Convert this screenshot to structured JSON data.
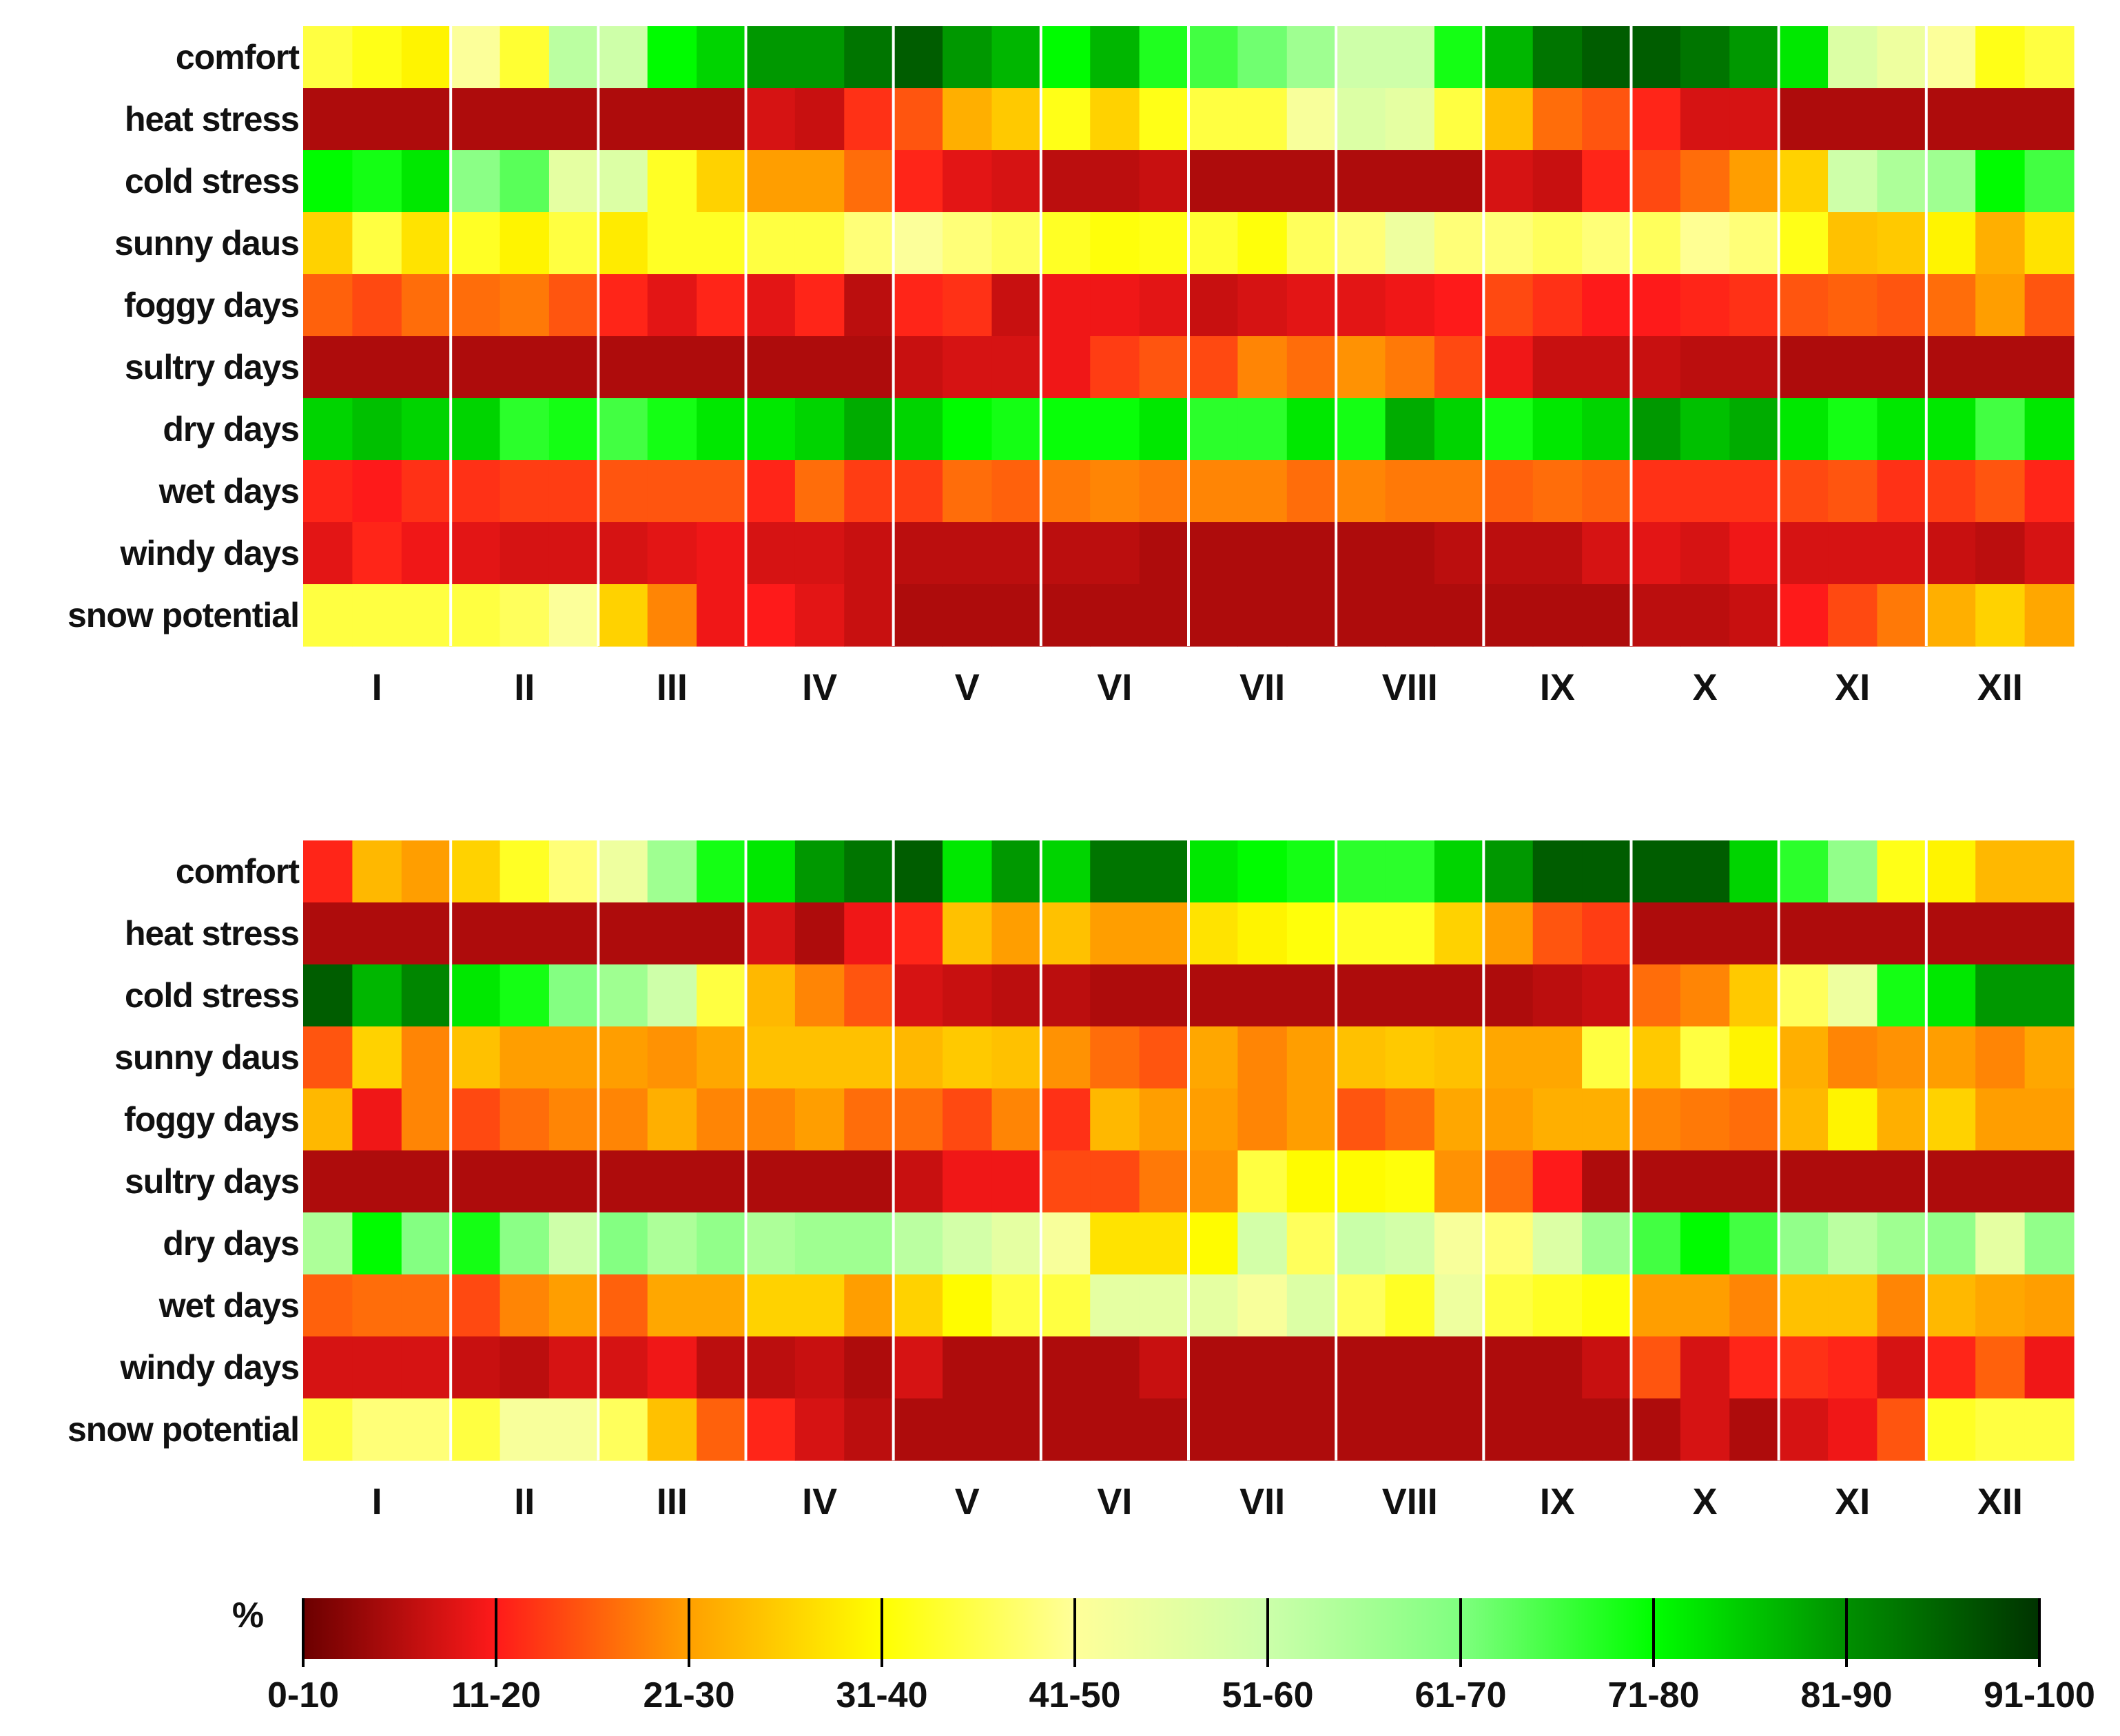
{
  "chart_data": {
    "type": "heatmap",
    "rows": [
      "comfort",
      "heat stress",
      "cold stress",
      "sunny daus",
      "foggy days",
      "sultry days",
      "dry days",
      "wet days",
      "windy days",
      "snow potential"
    ],
    "months": [
      "I",
      "II",
      "III",
      "IV",
      "V",
      "VI",
      "VII",
      "VIII",
      "IX",
      "X",
      "XI",
      "XII"
    ],
    "units_note": "each month split into 3 dekads (36 columns); values in % (class midpoints)",
    "panels": [
      {
        "name": "upper",
        "values": [
          [
            38,
            35,
            32,
            45,
            37,
            58,
            55,
            78,
            82,
            88,
            88,
            92,
            95,
            88,
            85,
            78,
            85,
            75,
            72,
            68,
            62,
            55,
            55,
            76,
            85,
            92,
            95,
            95,
            92,
            88,
            80,
            52,
            48,
            45,
            35,
            38
          ],
          [
            5,
            5,
            5,
            5,
            5,
            5,
            5,
            5,
            5,
            8,
            7,
            13,
            16,
            24,
            27,
            35,
            28,
            35,
            38,
            38,
            46,
            52,
            50,
            38,
            26,
            18,
            16,
            12,
            8,
            8,
            5,
            5,
            5,
            5,
            5,
            5
          ],
          [
            78,
            76,
            80,
            65,
            70,
            50,
            52,
            36,
            28,
            22,
            22,
            18,
            12,
            9,
            8,
            6,
            6,
            7,
            5,
            5,
            5,
            5,
            5,
            5,
            8,
            7,
            12,
            15,
            18,
            22,
            28,
            55,
            60,
            62,
            78,
            72
          ],
          [
            28,
            38,
            30,
            36,
            32,
            38,
            31,
            36,
            36,
            38,
            38,
            42,
            45,
            42,
            40,
            36,
            34,
            35,
            37,
            34,
            40,
            42,
            48,
            42,
            42,
            40,
            42,
            40,
            44,
            42,
            35,
            26,
            27,
            32,
            24,
            30
          ],
          [
            17,
            15,
            18,
            18,
            19,
            16,
            12,
            9,
            12,
            9,
            12,
            6,
            12,
            13,
            7,
            10,
            10,
            9,
            7,
            8,
            9,
            9,
            10,
            11,
            15,
            13,
            11,
            11,
            12,
            13,
            16,
            17,
            16,
            18,
            22,
            16
          ],
          [
            5,
            5,
            5,
            5,
            5,
            5,
            5,
            5,
            5,
            5,
            5,
            5,
            7,
            8,
            8,
            10,
            14,
            16,
            15,
            20,
            18,
            21,
            19,
            15,
            10,
            7,
            7,
            7,
            6,
            6,
            5,
            5,
            5,
            5,
            5,
            5
          ],
          [
            82,
            84,
            82,
            82,
            74,
            76,
            72,
            76,
            80,
            80,
            82,
            86,
            82,
            78,
            76,
            77,
            77,
            80,
            74,
            74,
            80,
            76,
            86,
            82,
            76,
            80,
            82,
            88,
            84,
            86,
            80,
            76,
            80,
            80,
            72,
            80
          ],
          [
            12,
            11,
            13,
            13,
            14,
            14,
            16,
            16,
            16,
            12,
            18,
            14,
            14,
            18,
            17,
            19,
            20,
            19,
            20,
            20,
            18,
            20,
            19,
            19,
            17,
            18,
            17,
            13,
            13,
            13,
            15,
            16,
            13,
            14,
            16,
            12
          ],
          [
            9,
            12,
            10,
            9,
            8,
            8,
            8,
            9,
            10,
            8,
            8,
            7,
            6,
            6,
            6,
            6,
            6,
            5,
            5,
            5,
            5,
            5,
            5,
            6,
            6,
            6,
            8,
            9,
            8,
            10,
            8,
            8,
            8,
            7,
            6,
            8
          ],
          [
            38,
            38,
            38,
            38,
            40,
            45,
            28,
            20,
            10,
            11,
            9,
            7,
            5,
            5,
            5,
            5,
            5,
            5,
            5,
            5,
            5,
            5,
            5,
            5,
            5,
            5,
            5,
            6,
            6,
            7,
            11,
            15,
            19,
            24,
            28,
            23
          ]
        ]
      },
      {
        "name": "lower",
        "values": [
          [
            12,
            25,
            22,
            28,
            36,
            42,
            48,
            62,
            76,
            80,
            88,
            92,
            95,
            80,
            88,
            82,
            92,
            92,
            80,
            78,
            76,
            74,
            74,
            82,
            88,
            95,
            95,
            95,
            95,
            82,
            74,
            64,
            35,
            32,
            25,
            25
          ],
          [
            5,
            5,
            5,
            5,
            5,
            5,
            5,
            5,
            5,
            8,
            5,
            10,
            12,
            26,
            22,
            26,
            22,
            22,
            30,
            32,
            34,
            36,
            36,
            28,
            22,
            16,
            14,
            5,
            5,
            5,
            5,
            5,
            5,
            5,
            5,
            5
          ],
          [
            95,
            85,
            90,
            80,
            76,
            66,
            62,
            55,
            38,
            25,
            20,
            16,
            8,
            7,
            6,
            6,
            5,
            5,
            5,
            5,
            5,
            5,
            5,
            5,
            5,
            6,
            7,
            18,
            20,
            27,
            40,
            48,
            76,
            80,
            88,
            88
          ],
          [
            16,
            28,
            20,
            26,
            22,
            22,
            22,
            21,
            23,
            26,
            26,
            26,
            25,
            27,
            26,
            21,
            18,
            16,
            23,
            20,
            22,
            26,
            27,
            26,
            23,
            23,
            38,
            27,
            38,
            32,
            24,
            20,
            21,
            22,
            20,
            23
          ],
          [
            25,
            10,
            20,
            15,
            18,
            20,
            20,
            24,
            20,
            20,
            22,
            18,
            18,
            15,
            20,
            13,
            25,
            22,
            22,
            20,
            22,
            16,
            18,
            23,
            22,
            24,
            24,
            20,
            19,
            18,
            25,
            32,
            24,
            28,
            22,
            22
          ],
          [
            5,
            5,
            5,
            5,
            5,
            5,
            5,
            5,
            5,
            5,
            5,
            5,
            7,
            10,
            10,
            15,
            15,
            19,
            21,
            38,
            33,
            33,
            34,
            21,
            18,
            11,
            5,
            5,
            5,
            5,
            5,
            5,
            5,
            5,
            5,
            5
          ],
          [
            60,
            78,
            66,
            76,
            65,
            55,
            66,
            60,
            64,
            60,
            62,
            62,
            58,
            54,
            50,
            46,
            30,
            30,
            33,
            54,
            40,
            56,
            54,
            46,
            42,
            52,
            62,
            72,
            78,
            72,
            64,
            58,
            62,
            64,
            50,
            64
          ],
          [
            17,
            18,
            18,
            15,
            20,
            22,
            17,
            23,
            23,
            28,
            28,
            22,
            28,
            33,
            38,
            38,
            50,
            50,
            50,
            46,
            52,
            40,
            36,
            48,
            38,
            36,
            34,
            22,
            22,
            20,
            26,
            26,
            20,
            25,
            23,
            22
          ],
          [
            8,
            8,
            8,
            7,
            6,
            8,
            8,
            10,
            6,
            6,
            7,
            5,
            8,
            5,
            5,
            5,
            5,
            7,
            5,
            5,
            5,
            5,
            5,
            5,
            5,
            5,
            7,
            16,
            8,
            12,
            13,
            12,
            8,
            12,
            17,
            10
          ],
          [
            38,
            42,
            42,
            38,
            46,
            46,
            40,
            26,
            17,
            12,
            8,
            6,
            5,
            5,
            5,
            5,
            5,
            5,
            5,
            5,
            5,
            5,
            5,
            5,
            5,
            5,
            5,
            5,
            8,
            5,
            8,
            10,
            16,
            36,
            38,
            38
          ]
        ]
      }
    ],
    "legend": {
      "unit": "%",
      "classes": [
        "0-10",
        "11-20",
        "21-30",
        "31-40",
        "41-50",
        "51-60",
        "61-70",
        "71-80",
        "81-90",
        "91-100"
      ],
      "colors": [
        "#7a0000",
        "#ff1a1a",
        "#ffa500",
        "#ffff33",
        "#ffff99",
        "#ccff99",
        "#99ff99",
        "#00ff00",
        "#009900",
        "#003300"
      ]
    }
  }
}
